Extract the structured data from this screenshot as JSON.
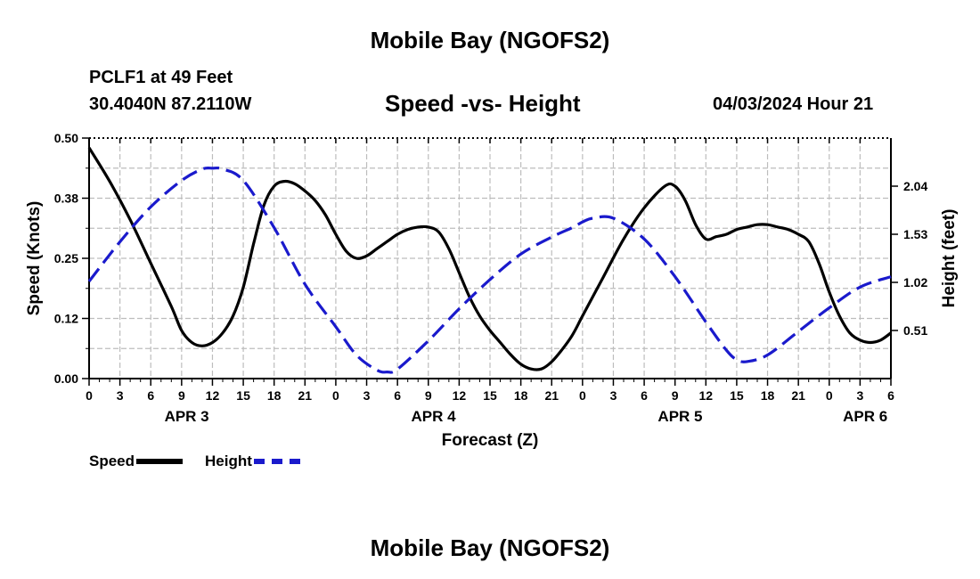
{
  "header": {
    "title": "Mobile Bay (NGOFS2)",
    "station": "PCLF1 at 49 Feet",
    "coords": "30.4040N  87.2110W",
    "subtitle": "Speed -vs- Height",
    "datetime": "04/03/2024 Hour 21"
  },
  "footer": {
    "title": "Mobile Bay (NGOFS2)"
  },
  "legend": {
    "speed": "Speed",
    "height": "Height"
  },
  "colors": {
    "speed": "#000000",
    "height": "#1a1acc",
    "grid": "#bdbdbd"
  },
  "chart_data": {
    "type": "line",
    "xlabel": "Forecast (Z)",
    "ylabel": "Speed (Knots)",
    "y2label": "Height (feet)",
    "ylim": [
      0,
      0.5
    ],
    "y2lim": [
      0,
      2.55
    ],
    "xlim": [
      0,
      78
    ],
    "xtick_labels": [
      "0",
      "3",
      "6",
      "9",
      "12",
      "15",
      "18",
      "21",
      "0",
      "3",
      "6",
      "9",
      "12",
      "15",
      "18",
      "21",
      "0",
      "3",
      "6",
      "9",
      "12",
      "15",
      "18",
      "21",
      "0",
      "3",
      "6"
    ],
    "ytick_labels": [
      "0.00",
      "0.12",
      "0.25",
      "0.38",
      "0.50"
    ],
    "y2tick_labels": [
      "0.51",
      "1.02",
      "1.53",
      "2.04"
    ],
    "day_labels": [
      {
        "label": "APR 3",
        "x": 9.5
      },
      {
        "label": "APR 4",
        "x": 33.5
      },
      {
        "label": "APR 5",
        "x": 57.5
      },
      {
        "label": "APR 6",
        "x": 75.5
      }
    ],
    "grid": true,
    "series": [
      {
        "name": "Speed",
        "axis": "left",
        "dash": "solid",
        "x": [
          0,
          2,
          4,
          6,
          8,
          9,
          10,
          11,
          12,
          13,
          14,
          15,
          16,
          17,
          18,
          19,
          20,
          21,
          22,
          23,
          24,
          25,
          26,
          27,
          28,
          29,
          30,
          31,
          32,
          33,
          34,
          35,
          36,
          37,
          38,
          39,
          40,
          41,
          42,
          43,
          44,
          45,
          46,
          47,
          48,
          50,
          52,
          54,
          56,
          57,
          58,
          59,
          60,
          61,
          62,
          63,
          64,
          65,
          66,
          67,
          68,
          69,
          70,
          71,
          72,
          73,
          74,
          75,
          76,
          77,
          78
        ],
        "values": [
          0.48,
          0.41,
          0.33,
          0.24,
          0.15,
          0.1,
          0.075,
          0.068,
          0.075,
          0.095,
          0.13,
          0.19,
          0.28,
          0.36,
          0.4,
          0.41,
          0.405,
          0.39,
          0.37,
          0.34,
          0.3,
          0.265,
          0.25,
          0.255,
          0.27,
          0.285,
          0.3,
          0.31,
          0.315,
          0.315,
          0.305,
          0.27,
          0.22,
          0.17,
          0.13,
          0.1,
          0.075,
          0.05,
          0.03,
          0.02,
          0.02,
          0.035,
          0.06,
          0.09,
          0.13,
          0.21,
          0.29,
          0.355,
          0.4,
          0.4,
          0.37,
          0.32,
          0.29,
          0.295,
          0.3,
          0.31,
          0.315,
          0.32,
          0.32,
          0.315,
          0.31,
          0.3,
          0.285,
          0.24,
          0.18,
          0.13,
          0.095,
          0.08,
          0.075,
          0.08,
          0.095
        ]
      },
      {
        "name": "Height",
        "axis": "right",
        "dash": "dashed",
        "x": [
          0,
          3,
          6,
          9,
          11,
          12,
          13,
          15,
          18,
          21,
          24,
          26,
          28,
          29,
          30,
          33,
          36,
          39,
          42,
          45,
          47,
          48,
          49,
          51,
          54,
          57,
          60,
          62,
          63,
          64,
          66,
          69,
          72,
          75,
          78
        ],
        "values": [
          1.03,
          1.45,
          1.82,
          2.1,
          2.22,
          2.23,
          2.22,
          2.1,
          1.6,
          1.0,
          0.55,
          0.25,
          0.09,
          0.07,
          0.1,
          0.4,
          0.74,
          1.05,
          1.32,
          1.5,
          1.6,
          1.66,
          1.7,
          1.7,
          1.48,
          1.08,
          0.6,
          0.3,
          0.2,
          0.18,
          0.25,
          0.5,
          0.75,
          0.97,
          1.08
        ]
      }
    ]
  }
}
